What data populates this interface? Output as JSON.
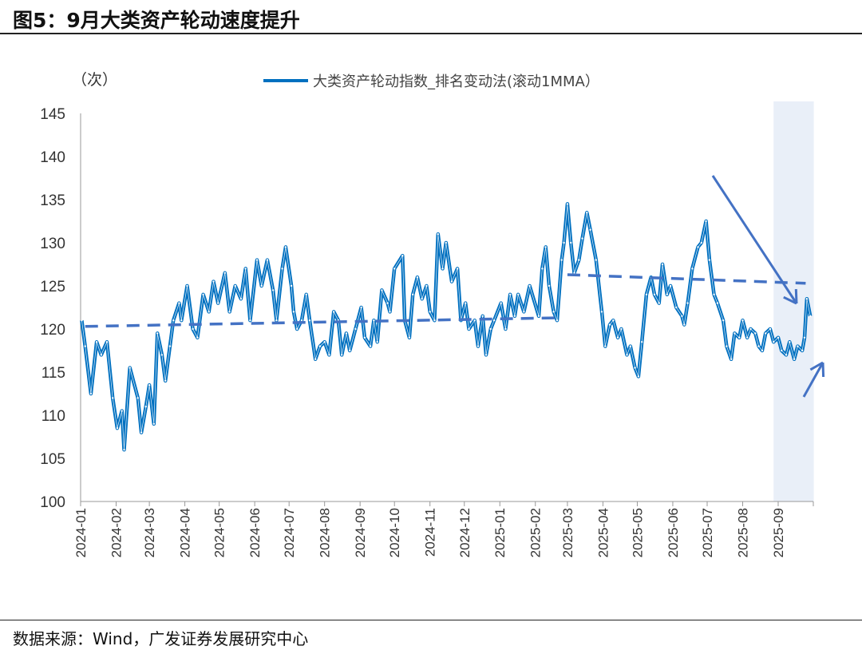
{
  "title": "图5：9月大类资产轮动速度提升",
  "source": "数据来源：Wind，广发证券发展研究中心",
  "chart_data": {
    "type": "line",
    "ylabel": "（次）",
    "ylim": [
      100,
      145
    ],
    "yticks": [
      100,
      105,
      110,
      115,
      120,
      125,
      130,
      135,
      140,
      145
    ],
    "xticks": [
      "2024-01",
      "2024-02",
      "2024-03",
      "2024-04",
      "2024-05",
      "2024-06",
      "2024-07",
      "2024-08",
      "2024-09",
      "2024-10",
      "2024-11",
      "2024-12",
      "2025-01",
      "2025-02",
      "2025-03",
      "2025-04",
      "2025-05",
      "2025-06",
      "2025-07",
      "2025-08",
      "2025-09"
    ],
    "legend_position": "top",
    "grid": false,
    "line_color": "#0070C0",
    "trend_color": "#4472C4",
    "highlight_color": "#E9EFF8",
    "highlight_range": [
      "2025-08-28",
      "2025-09-30"
    ],
    "series": [
      {
        "name": "大类资产轮动指数_排名变动法(滚动1MMA）",
        "points": [
          [
            "2024-01-02",
            121
          ],
          [
            "2024-01-05",
            118
          ],
          [
            "2024-01-10",
            112.5
          ],
          [
            "2024-01-15",
            118.5
          ],
          [
            "2024-01-19",
            117
          ],
          [
            "2024-01-24",
            118.5
          ],
          [
            "2024-01-29",
            112
          ],
          [
            "2024-02-02",
            108.5
          ],
          [
            "2024-02-06",
            110.5
          ],
          [
            "2024-02-08",
            106
          ],
          [
            "2024-02-13",
            115.5
          ],
          [
            "2024-02-20",
            112
          ],
          [
            "2024-02-23",
            108
          ],
          [
            "2024-02-27",
            111
          ],
          [
            "2024-03-01",
            113.5
          ],
          [
            "2024-03-05",
            109
          ],
          [
            "2024-03-08",
            119.5
          ],
          [
            "2024-03-12",
            117
          ],
          [
            "2024-03-15",
            114
          ],
          [
            "2024-03-19",
            118
          ],
          [
            "2024-03-22",
            121
          ],
          [
            "2024-03-27",
            123
          ],
          [
            "2024-03-29",
            121
          ],
          [
            "2024-04-03",
            125
          ],
          [
            "2024-04-08",
            120
          ],
          [
            "2024-04-12",
            119
          ],
          [
            "2024-04-17",
            124
          ],
          [
            "2024-04-22",
            122
          ],
          [
            "2024-04-26",
            125.5
          ],
          [
            "2024-04-30",
            123
          ],
          [
            "2024-05-06",
            126.5
          ],
          [
            "2024-05-10",
            122
          ],
          [
            "2024-05-15",
            125
          ],
          [
            "2024-05-20",
            123.5
          ],
          [
            "2024-05-24",
            127
          ],
          [
            "2024-05-28",
            121
          ],
          [
            "2024-06-03",
            128
          ],
          [
            "2024-06-07",
            125
          ],
          [
            "2024-06-12",
            128
          ],
          [
            "2024-06-17",
            124.5
          ],
          [
            "2024-06-20",
            121
          ],
          [
            "2024-06-25",
            127
          ],
          [
            "2024-06-28",
            129.5
          ],
          [
            "2024-07-03",
            125
          ],
          [
            "2024-07-05",
            122
          ],
          [
            "2024-07-08",
            120
          ],
          [
            "2024-07-12",
            121
          ],
          [
            "2024-07-16",
            124
          ],
          [
            "2024-07-19",
            121
          ],
          [
            "2024-07-24",
            116.5
          ],
          [
            "2024-07-28",
            118
          ],
          [
            "2024-08-01",
            118.5
          ],
          [
            "2024-08-05",
            117
          ],
          [
            "2024-08-09",
            122
          ],
          [
            "2024-08-13",
            121
          ],
          [
            "2024-08-16",
            117
          ],
          [
            "2024-08-20",
            119.5
          ],
          [
            "2024-08-23",
            117.5
          ],
          [
            "2024-08-28",
            120
          ],
          [
            "2024-09-02",
            122.5
          ],
          [
            "2024-09-05",
            119
          ],
          [
            "2024-09-10",
            118
          ],
          [
            "2024-09-13",
            121
          ],
          [
            "2024-09-16",
            118.5
          ],
          [
            "2024-09-20",
            124.5
          ],
          [
            "2024-09-25",
            123
          ],
          [
            "2024-09-27",
            122
          ],
          [
            "2024-10-01",
            127
          ],
          [
            "2024-10-08",
            128.5
          ],
          [
            "2024-10-10",
            121
          ],
          [
            "2024-10-14",
            119
          ],
          [
            "2024-10-17",
            124
          ],
          [
            "2024-10-21",
            126
          ],
          [
            "2024-10-25",
            123.5
          ],
          [
            "2024-10-29",
            125
          ],
          [
            "2024-11-01",
            122
          ],
          [
            "2024-11-05",
            121
          ],
          [
            "2024-11-08",
            131
          ],
          [
            "2024-11-12",
            127
          ],
          [
            "2024-11-15",
            130
          ],
          [
            "2024-11-20",
            125.5
          ],
          [
            "2024-11-25",
            127
          ],
          [
            "2024-11-28",
            121
          ],
          [
            "2024-12-02",
            123
          ],
          [
            "2024-12-05",
            120
          ],
          [
            "2024-12-10",
            121
          ],
          [
            "2024-12-13",
            118
          ],
          [
            "2024-12-17",
            121.5
          ],
          [
            "2024-12-20",
            117
          ],
          [
            "2024-12-24",
            120
          ],
          [
            "2024-12-27",
            121
          ],
          [
            "2025-01-02",
            123
          ],
          [
            "2025-01-06",
            120
          ],
          [
            "2025-01-10",
            124
          ],
          [
            "2025-01-14",
            121.5
          ],
          [
            "2025-01-17",
            124
          ],
          [
            "2025-01-22",
            122
          ],
          [
            "2025-01-27",
            125
          ],
          [
            "2025-02-04",
            121.5
          ],
          [
            "2025-02-07",
            127
          ],
          [
            "2025-02-10",
            129.5
          ],
          [
            "2025-02-13",
            125
          ],
          [
            "2025-02-17",
            122
          ],
          [
            "2025-02-20",
            121
          ],
          [
            "2025-02-24",
            128
          ],
          [
            "2025-02-26",
            130
          ],
          [
            "2025-03-01",
            134.5
          ],
          [
            "2025-03-04",
            130
          ],
          [
            "2025-03-07",
            126.5
          ],
          [
            "2025-03-11",
            128
          ],
          [
            "2025-03-14",
            130.5
          ],
          [
            "2025-03-18",
            133.5
          ],
          [
            "2025-03-21",
            131.5
          ],
          [
            "2025-03-26",
            128
          ],
          [
            "2025-03-31",
            122
          ],
          [
            "2025-04-03",
            118
          ],
          [
            "2025-04-07",
            120.5
          ],
          [
            "2025-04-10",
            121
          ],
          [
            "2025-04-14",
            119
          ],
          [
            "2025-04-17",
            120
          ],
          [
            "2025-04-22",
            117
          ],
          [
            "2025-04-25",
            118
          ],
          [
            "2025-04-29",
            115.5
          ],
          [
            "2025-05-02",
            114.5
          ],
          [
            "2025-05-05",
            118.5
          ],
          [
            "2025-05-09",
            124
          ],
          [
            "2025-05-13",
            126
          ],
          [
            "2025-05-16",
            124
          ],
          [
            "2025-05-20",
            123
          ],
          [
            "2025-05-23",
            127.5
          ],
          [
            "2025-05-27",
            124
          ],
          [
            "2025-05-30",
            125
          ],
          [
            "2025-06-04",
            122.5
          ],
          [
            "2025-06-09",
            121.5
          ],
          [
            "2025-06-11",
            120.5
          ],
          [
            "2025-06-14",
            123
          ],
          [
            "2025-06-18",
            127
          ],
          [
            "2025-06-23",
            129.5
          ],
          [
            "2025-06-26",
            130
          ],
          [
            "2025-06-30",
            132.5
          ],
          [
            "2025-07-03",
            128
          ],
          [
            "2025-07-07",
            124
          ],
          [
            "2025-07-10",
            123
          ],
          [
            "2025-07-15",
            121
          ],
          [
            "2025-07-18",
            118
          ],
          [
            "2025-07-22",
            116.5
          ],
          [
            "2025-07-25",
            119.5
          ],
          [
            "2025-07-29",
            119
          ],
          [
            "2025-08-01",
            121
          ],
          [
            "2025-08-05",
            119
          ],
          [
            "2025-08-08",
            120
          ],
          [
            "2025-08-12",
            119.5
          ],
          [
            "2025-08-15",
            118
          ],
          [
            "2025-08-18",
            117.5
          ],
          [
            "2025-08-21",
            119.5
          ],
          [
            "2025-08-25",
            120
          ],
          [
            "2025-08-28",
            118.5
          ],
          [
            "2025-09-01",
            119
          ],
          [
            "2025-09-04",
            117.5
          ],
          [
            "2025-09-08",
            117
          ],
          [
            "2025-09-11",
            118.5
          ],
          [
            "2025-09-15",
            116.5
          ],
          [
            "2025-09-18",
            118
          ],
          [
            "2025-09-22",
            117.5
          ],
          [
            "2025-09-24",
            119
          ],
          [
            "2025-09-26",
            123.5
          ],
          [
            "2025-09-29",
            121.5
          ]
        ]
      }
    ],
    "trend_lines": [
      {
        "from": [
          "2024-01-05",
          120.3
        ],
        "to": [
          "2025-02-22",
          121.3
        ]
      },
      {
        "from": [
          "2025-03-01",
          126.3
        ],
        "to": [
          "2025-09-25",
          125.3
        ]
      }
    ]
  }
}
